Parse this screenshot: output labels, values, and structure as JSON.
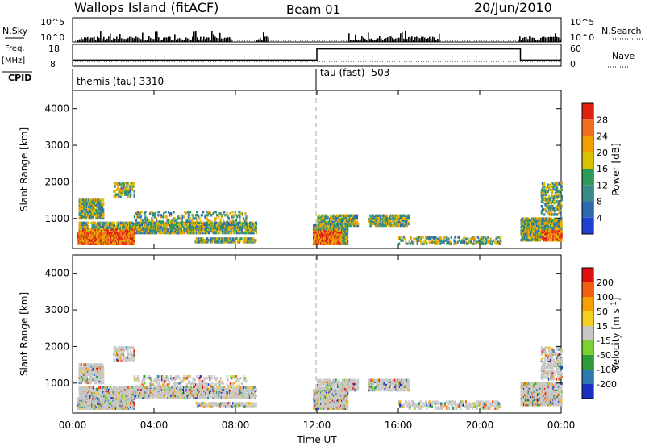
{
  "header": {
    "title": "Wallops Island (fitACF)",
    "beam": "Beam 01",
    "date": "20/Jun/2010"
  },
  "chart_data": [
    {
      "type": "line",
      "id": "nsky",
      "label_left": "N.Sky",
      "label_right": "N.Search",
      "left_ticks": [
        "10^5",
        "10^0"
      ],
      "right_ticks": [
        "10^5",
        "10^0"
      ],
      "series": [
        {
          "name": "N.Sky",
          "style": "bars"
        },
        {
          "name": "N.Search",
          "style": "dotted"
        }
      ]
    },
    {
      "type": "line",
      "id": "freq",
      "label_left": [
        "Freq.",
        "[MHz]"
      ],
      "label_right": "Nave",
      "left_ticks": [
        18,
        8
      ],
      "right_ticks": [
        60,
        0
      ],
      "segments": [
        {
          "x": [
            0,
            12.0
          ],
          "freq_level": 0.2
        },
        {
          "x": [
            12.0,
            22.0
          ],
          "freq_level": 0.8
        },
        {
          "x": [
            22.0,
            24.0
          ],
          "freq_level": 0.2
        }
      ]
    },
    {
      "type": "table",
      "id": "cpid",
      "label": "CPID",
      "segments": [
        {
          "start": 0,
          "text": "themis (tau) 3310"
        },
        {
          "start": 12.0,
          "text": "tau (fast) -503"
        }
      ]
    },
    {
      "type": "heatmap",
      "id": "power",
      "ylabel": "Slant Range [km]",
      "ylim": [
        180,
        4500
      ],
      "yticks": [
        1000,
        2000,
        3000,
        4000
      ],
      "xlim": [
        0,
        24
      ],
      "colorbar": {
        "label": "Power [dB]",
        "ticks": [
          "4",
          "8",
          "12",
          "16",
          "20",
          "24",
          "28"
        ],
        "colors": [
          "#1e3fd0",
          "#2e69b0",
          "#3b8a8a",
          "#2e9a5a",
          "#d8c000",
          "#f3a000",
          "#f07020",
          "#e02010"
        ]
      }
    },
    {
      "type": "heatmap",
      "id": "velocity",
      "ylabel": "Slant Range [km]",
      "ylim": [
        180,
        4500
      ],
      "yticks": [
        1000,
        2000,
        3000,
        4000
      ],
      "xlim": [
        0,
        24
      ],
      "xlabel": "Time UT",
      "xticks": [
        "00:00",
        "04:00",
        "08:00",
        "12:00",
        "16:00",
        "20:00",
        "00:00"
      ],
      "colorbar": {
        "label": "Velocity [m s^-1]",
        "ticks": [
          "200",
          "100",
          "50",
          "15",
          "-15",
          "-50",
          "-100",
          "-200"
        ],
        "colors": [
          "#1a30c0",
          "#2e7ab0",
          "#2e9a3a",
          "#7cd030",
          "#c8c8c8",
          "#f5d020",
          "#f5a000",
          "#f06010",
          "#e01010"
        ]
      }
    }
  ],
  "colors": {
    "axis": "#000000",
    "gridline": "#bbbbbb"
  }
}
